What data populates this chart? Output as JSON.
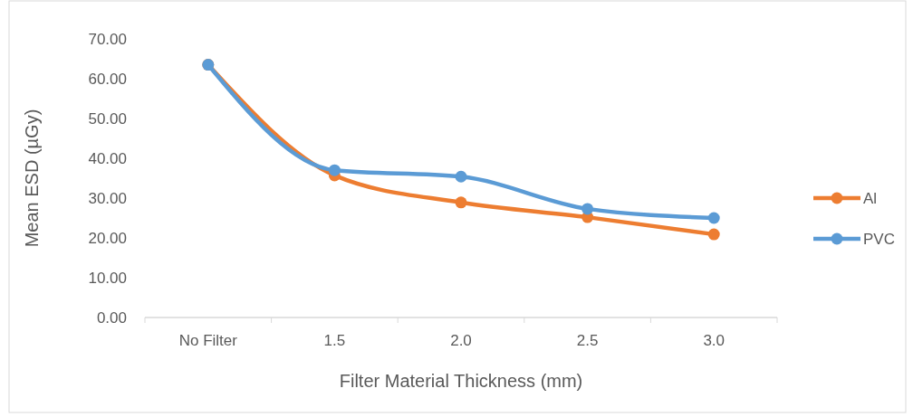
{
  "chart_data": {
    "type": "line",
    "xlabel": "Filter Material Thickness (mm)",
    "ylabel": "Mean ESD (µGy)",
    "categories": [
      "No Filter",
      "1.5",
      "2.0",
      "2.5",
      "3.0"
    ],
    "series": [
      {
        "name": "Al",
        "color": "#ed7d31",
        "values": [
          63.5,
          35.7,
          28.9,
          25.2,
          20.9
        ]
      },
      {
        "name": "PVC",
        "color": "#5b9bd5",
        "values": [
          63.5,
          37.0,
          35.4,
          27.3,
          25.0
        ]
      }
    ],
    "ylim": [
      0,
      70
    ],
    "yticks": [
      {
        "value": 0,
        "label": "0.00"
      },
      {
        "value": 10,
        "label": "10.00"
      },
      {
        "value": 20,
        "label": "20.00"
      },
      {
        "value": 30,
        "label": "30.00"
      },
      {
        "value": 40,
        "label": "40.00"
      },
      {
        "value": 50,
        "label": "50.00"
      },
      {
        "value": 60,
        "label": "60.00"
      },
      {
        "value": 70,
        "label": "70.00"
      }
    ],
    "grid": false,
    "legend": "right",
    "marker": "circle",
    "line_style": "solid"
  }
}
